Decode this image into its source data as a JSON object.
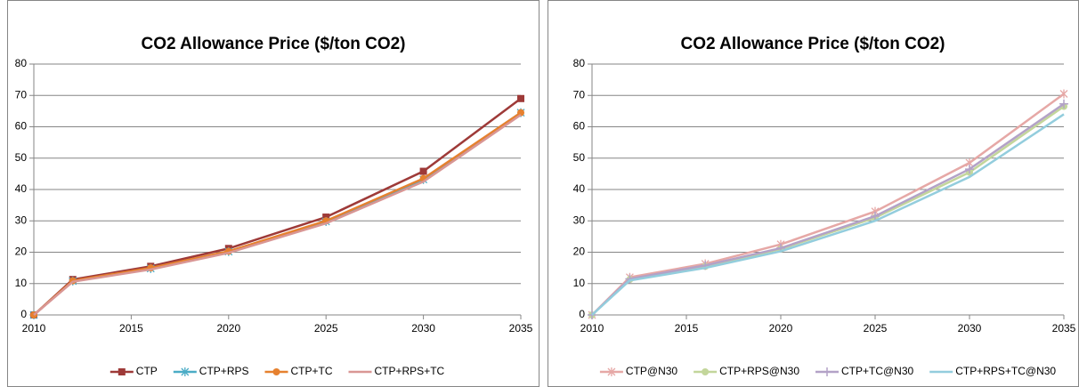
{
  "chart_data": [
    {
      "type": "line",
      "title": "CO2 Allowance Price ($/ton CO2)",
      "x": [
        2010,
        2012,
        2016,
        2020,
        2025,
        2030,
        2035
      ],
      "xlim": [
        2010,
        2035
      ],
      "xticks": [
        2010,
        2015,
        2020,
        2025,
        2030,
        2035
      ],
      "ylim": [
        0,
        80
      ],
      "yticks": [
        0,
        10,
        20,
        30,
        40,
        50,
        60,
        70,
        80
      ],
      "grid": true,
      "legend": "bottom",
      "series": [
        {
          "name": "CTP",
          "color": "#9e3a38",
          "marker": "square",
          "values": [
            0,
            11.3,
            15.5,
            21.2,
            31.2,
            45.8,
            69
          ]
        },
        {
          "name": "CTP+RPS",
          "color": "#4bacc6",
          "marker": "asterisk",
          "values": [
            0,
            10.8,
            14.8,
            20.2,
            29.8,
            43.2,
            64.5
          ]
        },
        {
          "name": "CTP+TC",
          "color": "#e6812f",
          "marker": "circle",
          "values": [
            0,
            10.9,
            15,
            20.3,
            30,
            43.5,
            64.5
          ]
        },
        {
          "name": "CTP+RPS+TC",
          "color": "#d99694",
          "marker": "none",
          "values": [
            0,
            10.6,
            14.5,
            19.8,
            29.2,
            42.5,
            63.8
          ]
        }
      ]
    },
    {
      "type": "line",
      "title": "CO2 Allowance Price ($/ton CO2)",
      "x": [
        2010,
        2012,
        2016,
        2020,
        2025,
        2030,
        2035
      ],
      "xlim": [
        2010,
        2035
      ],
      "xticks": [
        2010,
        2015,
        2020,
        2025,
        2030,
        2035
      ],
      "ylim": [
        0,
        80
      ],
      "yticks": [
        0,
        10,
        20,
        30,
        40,
        50,
        60,
        70,
        80
      ],
      "grid": true,
      "legend": "bottom",
      "series": [
        {
          "name": "CTP@N30",
          "color": "#e6a8a6",
          "marker": "asterisk",
          "values": [
            0,
            12,
            16.3,
            22.5,
            33,
            48.5,
            70.5
          ]
        },
        {
          "name": "CTP+RPS@N30",
          "color": "#c3d69b",
          "marker": "circle",
          "values": [
            0,
            11.3,
            15.5,
            21,
            31,
            45.5,
            66.5
          ]
        },
        {
          "name": "CTP+TC@N30",
          "color": "#b3a2c7",
          "marker": "plus",
          "values": [
            0,
            11.5,
            15.8,
            21.3,
            31.5,
            46.5,
            67.3
          ]
        },
        {
          "name": "CTP+RPS+TC@N30",
          "color": "#93cddd",
          "marker": "none",
          "values": [
            0,
            11,
            15,
            20.3,
            30,
            44,
            64
          ]
        }
      ]
    }
  ]
}
